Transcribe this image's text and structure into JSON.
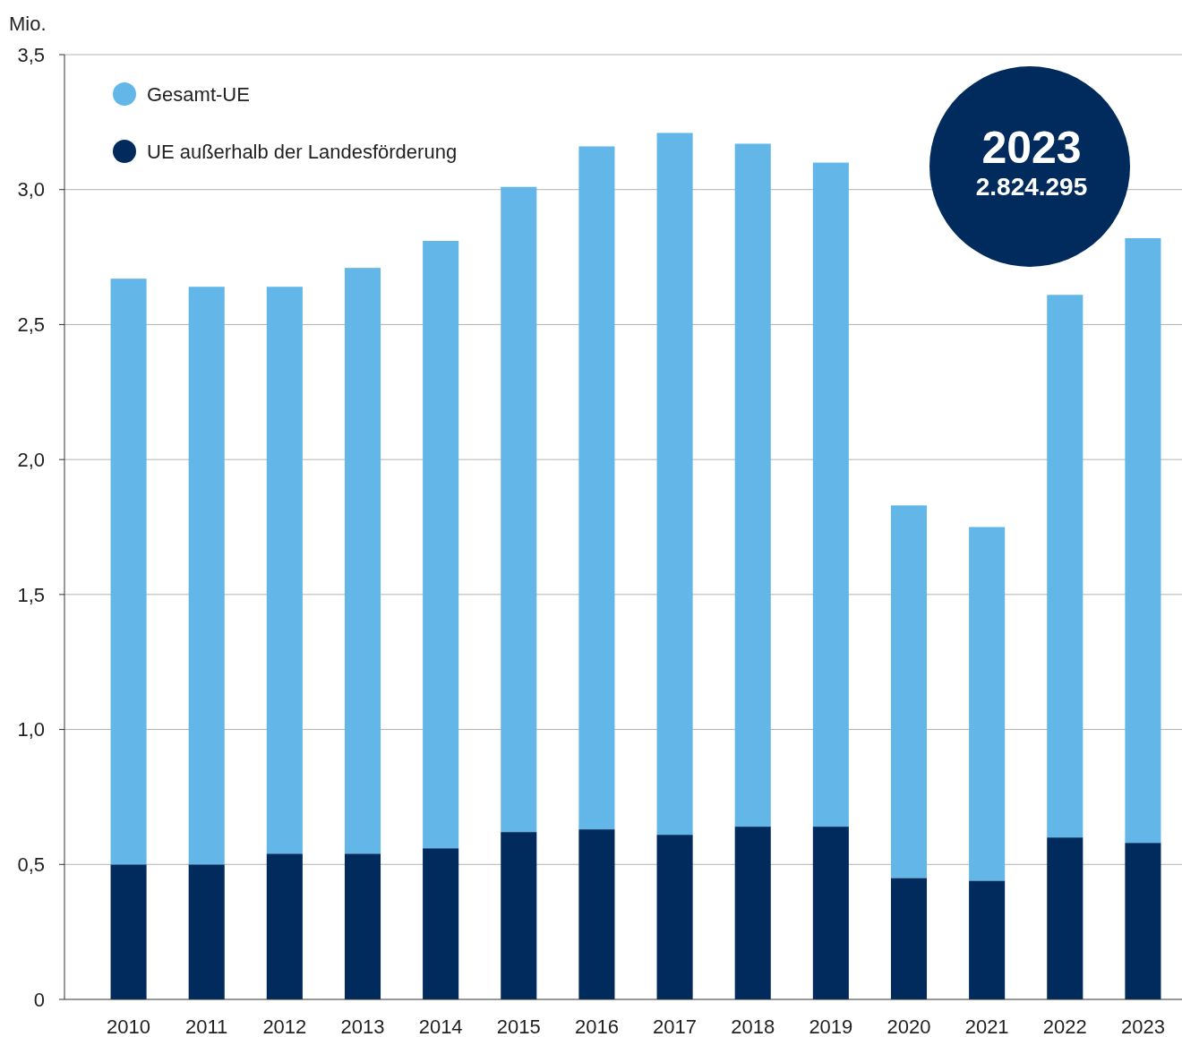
{
  "chart_data": {
    "type": "bar",
    "stacked": true,
    "ylabel": "Mio.",
    "categories": [
      "2010",
      "2011",
      "2012",
      "2013",
      "2014",
      "2015",
      "2016",
      "2017",
      "2018",
      "2019",
      "2020",
      "2021",
      "2022",
      "2023"
    ],
    "series": [
      {
        "name": "UE außerhalb der Landesförderung",
        "color": "#002b5c",
        "values": [
          0.5,
          0.5,
          0.54,
          0.54,
          0.56,
          0.62,
          0.63,
          0.61,
          0.64,
          0.64,
          0.45,
          0.44,
          0.6,
          0.58
        ]
      },
      {
        "name": "Gesamt-UE",
        "color": "#63b7e8",
        "values": [
          2.17,
          2.14,
          2.1,
          2.17,
          2.25,
          2.39,
          2.53,
          2.6,
          2.53,
          2.46,
          1.38,
          1.31,
          2.01,
          2.24
        ]
      }
    ],
    "ylim": [
      0,
      3.5
    ],
    "yticks": [
      0,
      {
        "value": 0.5,
        "label": "0,5"
      },
      {
        "value": 1,
        "label": "1,0"
      },
      {
        "value": 1.5,
        "label": "1,5"
      },
      {
        "value": 2,
        "label": "2,0"
      },
      {
        "value": 2.5,
        "label": "2,5"
      },
      {
        "value": 3,
        "label": "3,0"
      },
      {
        "value": 3.5,
        "label": "3,5"
      }
    ],
    "grid": "y",
    "legend": "top left",
    "annotations": [
      "2023",
      "2.824.295"
    ]
  }
}
